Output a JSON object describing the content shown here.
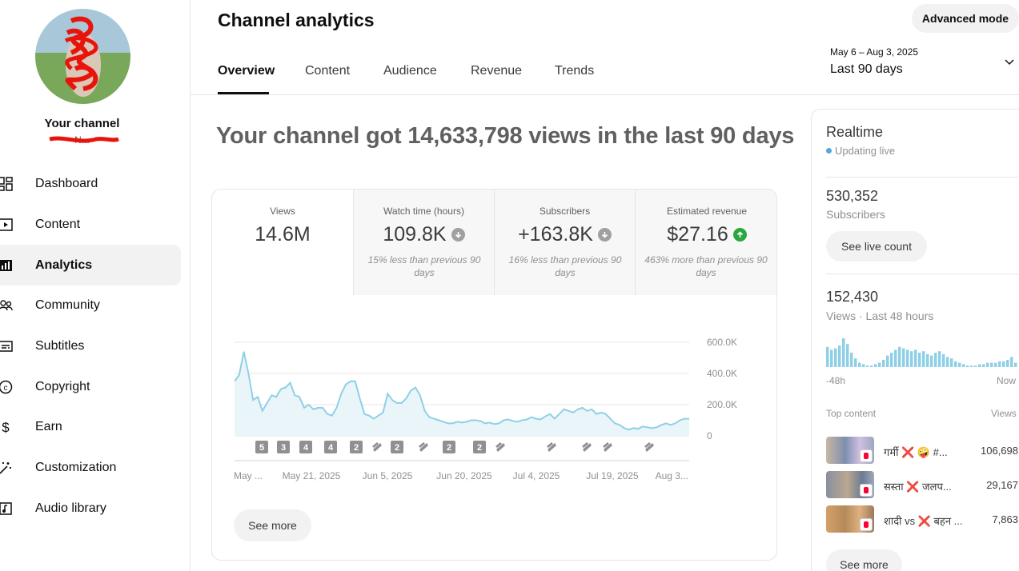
{
  "sidebar": {
    "channel_name": "Your channel",
    "channel_handle": "N...",
    "items": [
      {
        "label": "Dashboard",
        "icon": "dashboard-icon"
      },
      {
        "label": "Content",
        "icon": "content-icon"
      },
      {
        "label": "Analytics",
        "icon": "analytics-icon",
        "active": true
      },
      {
        "label": "Community",
        "icon": "community-icon"
      },
      {
        "label": "Subtitles",
        "icon": "subtitles-icon"
      },
      {
        "label": "Copyright",
        "icon": "copyright-icon"
      },
      {
        "label": "Earn",
        "icon": "earn-icon"
      },
      {
        "label": "Customization",
        "icon": "customization-icon"
      },
      {
        "label": "Audio library",
        "icon": "audio-library-icon"
      }
    ]
  },
  "header": {
    "title": "Channel analytics",
    "advanced_mode": "Advanced mode",
    "tabs": [
      "Overview",
      "Content",
      "Audience",
      "Revenue",
      "Trends"
    ],
    "date_range_dates": "May 6 – Aug 3, 2025",
    "date_range_label": "Last 90 days"
  },
  "headline": "Your channel got 14,633,798 views in the last 90 days",
  "metrics": [
    {
      "label": "Views",
      "value": "14.6M",
      "note": "",
      "trend": "none"
    },
    {
      "label": "Watch time (hours)",
      "value": "109.8K",
      "note": "15% less than previous 90 days",
      "trend": "down"
    },
    {
      "label": "Subscribers",
      "value": "+163.8K",
      "note": "16% less than previous 90 days",
      "trend": "down"
    },
    {
      "label": "Estimated revenue",
      "value": "$27.16",
      "note": "463% more than previous 90 days",
      "trend": "up"
    }
  ],
  "chart_data": {
    "type": "area",
    "title": "",
    "xlabel": "",
    "ylabel": "",
    "ylim": [
      0,
      600000
    ],
    "y_ticks": [
      "600.0K",
      "400.0K",
      "200.0K",
      "0"
    ],
    "x_tick_labels": [
      "May ...",
      "May 21, 2025",
      "Jun 5, 2025",
      "Jun 20, 2025",
      "Jul 4, 2025",
      "Jul 19, 2025",
      "Aug 3..."
    ],
    "values": [
      350000,
      390000,
      540000,
      400000,
      230000,
      250000,
      160000,
      210000,
      260000,
      250000,
      300000,
      310000,
      340000,
      260000,
      250000,
      180000,
      200000,
      170000,
      180000,
      180000,
      140000,
      130000,
      180000,
      270000,
      330000,
      350000,
      350000,
      240000,
      140000,
      130000,
      110000,
      130000,
      150000,
      270000,
      230000,
      210000,
      210000,
      240000,
      290000,
      310000,
      260000,
      160000,
      120000,
      110000,
      100000,
      90000,
      80000,
      80000,
      90000,
      85000,
      90000,
      100000,
      100000,
      95000,
      80000,
      85000,
      75000,
      80000,
      100000,
      105000,
      95000,
      90000,
      100000,
      105000,
      120000,
      110000,
      105000,
      125000,
      140000,
      110000,
      140000,
      170000,
      160000,
      150000,
      170000,
      180000,
      160000,
      170000,
      140000,
      150000,
      140000,
      110000,
      80000,
      70000,
      50000,
      40000,
      50000,
      45000,
      60000,
      55000,
      50000,
      55000,
      70000,
      80000,
      70000,
      80000,
      100000,
      110000,
      110000
    ],
    "markers": [
      "5",
      "3",
      "4",
      "4",
      "2",
      "short",
      "2",
      "short",
      "2",
      "2",
      "short",
      "short",
      "short",
      "short",
      "short"
    ]
  },
  "see_more_main": "See more",
  "realtime": {
    "title": "Realtime",
    "live": "Updating live",
    "subscribers_value": "530,352",
    "subscribers_label": "Subscribers",
    "see_live_count": "See live count",
    "views_value": "152,430",
    "views_label": "Views · Last 48 hours",
    "axis_left": "-48h",
    "axis_right": "Now",
    "top_content_label": "Top content",
    "views_col_label": "Views",
    "bars": [
      14,
      12,
      13,
      15,
      20,
      16,
      10,
      6,
      3,
      2,
      1,
      1,
      2,
      3,
      5,
      8,
      10,
      12,
      14,
      13,
      12,
      11,
      12,
      10,
      11,
      9,
      8,
      10,
      11,
      9,
      7,
      6,
      4,
      3,
      2,
      1,
      1,
      1,
      2,
      2,
      3,
      3,
      3,
      4,
      4,
      5,
      7,
      3
    ],
    "top_content": [
      {
        "title": "गर्मी ❌ 🤪 #...",
        "views": "106,698"
      },
      {
        "title": "सस्ता ❌ जलप...",
        "views": "29,167"
      },
      {
        "title": "शादी vs ❌ बहन ...",
        "views": "7,863"
      }
    ],
    "see_more": "See more"
  }
}
